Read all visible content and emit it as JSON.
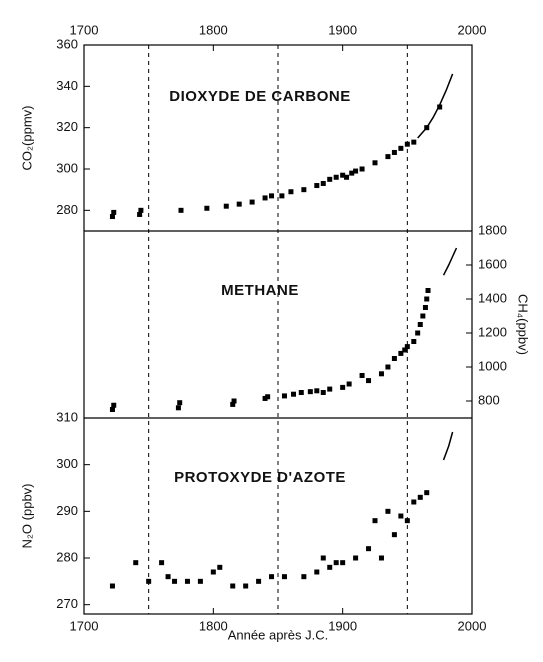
{
  "chart_data": [
    {
      "type": "scatter",
      "title": "DIOXYDE DE CARBONE",
      "y_label": "CO₂(ppmv)",
      "y_axis_side": "left",
      "xlim": [
        1700,
        2000
      ],
      "xticks": [
        1700,
        1800,
        1900,
        2000
      ],
      "x_axis_side": "top",
      "ylim": [
        270,
        360
      ],
      "yticks": [
        280,
        300,
        320,
        340,
        360
      ],
      "vlines": [
        1750,
        1850,
        1950
      ],
      "series": [
        {
          "style": "points",
          "color": "#000000",
          "x": [
            1722,
            1723,
            1743,
            1744,
            1775,
            1795,
            1810,
            1820,
            1830,
            1840,
            1845,
            1853,
            1860,
            1870,
            1880,
            1885,
            1890,
            1895,
            1900,
            1903,
            1907,
            1910,
            1915,
            1925,
            1935,
            1940,
            1945,
            1950,
            1955,
            1965,
            1975
          ],
          "values": [
            277,
            279,
            278,
            280,
            280,
            281,
            282,
            283,
            284,
            286,
            287,
            287,
            289,
            290,
            292,
            293,
            295,
            296,
            297,
            296,
            298,
            299,
            300,
            303,
            306,
            308,
            310,
            312,
            313,
            320,
            330
          ]
        },
        {
          "style": "line",
          "color": "#000000",
          "x": [
            1958,
            1965,
            1970,
            1975,
            1980,
            1985
          ],
          "values": [
            315,
            320,
            325,
            331,
            338,
            346
          ]
        }
      ]
    },
    {
      "type": "scatter",
      "title": "METHANE",
      "y_label": "CH₄(ppbv)",
      "y_axis_side": "right",
      "xlim": [
        1700,
        2000
      ],
      "ylim": [
        700,
        1800
      ],
      "yticks": [
        800,
        1000,
        1200,
        1400,
        1600,
        1800
      ],
      "series": [
        {
          "style": "points",
          "color": "#000000",
          "x": [
            1722,
            1723,
            1773,
            1774,
            1815,
            1816,
            1840,
            1842,
            1855,
            1862,
            1868,
            1875,
            1880,
            1885,
            1890,
            1900,
            1905,
            1915,
            1920,
            1930,
            1935,
            1940,
            1945,
            1948,
            1950,
            1955,
            1958,
            1960,
            1962,
            1964,
            1965,
            1966
          ],
          "values": [
            750,
            775,
            760,
            790,
            780,
            800,
            815,
            825,
            830,
            840,
            850,
            855,
            860,
            850,
            870,
            880,
            900,
            950,
            920,
            960,
            1000,
            1050,
            1080,
            1100,
            1120,
            1150,
            1200,
            1250,
            1300,
            1350,
            1400,
            1450
          ]
        },
        {
          "style": "line",
          "color": "#000000",
          "x": [
            1978,
            1982,
            1985,
            1988
          ],
          "values": [
            1540,
            1600,
            1650,
            1700
          ]
        }
      ]
    },
    {
      "type": "scatter",
      "title": "PROTOXYDE D'AZOTE",
      "y_label": "N₂O (ppbv)",
      "y_axis_side": "left",
      "xlim": [
        1700,
        2000
      ],
      "xticks": [
        1700,
        1800,
        1900,
        2000
      ],
      "x_axis_side": "bottom",
      "x_label": "Année après J.C.",
      "ylim": [
        268,
        310
      ],
      "yticks": [
        270,
        280,
        290,
        300,
        310
      ],
      "series": [
        {
          "style": "points",
          "color": "#000000",
          "x": [
            1722,
            1740,
            1750,
            1760,
            1765,
            1770,
            1780,
            1790,
            1800,
            1805,
            1815,
            1825,
            1835,
            1845,
            1855,
            1870,
            1880,
            1885,
            1890,
            1895,
            1900,
            1910,
            1920,
            1925,
            1930,
            1935,
            1940,
            1945,
            1950,
            1955,
            1960,
            1965
          ],
          "values": [
            274,
            279,
            275,
            279,
            276,
            275,
            275,
            275,
            277,
            278,
            274,
            274,
            275,
            276,
            276,
            276,
            277,
            280,
            278,
            279,
            279,
            280,
            282,
            288,
            280,
            290,
            285,
            289,
            288,
            292,
            293,
            294
          ]
        },
        {
          "style": "line",
          "color": "#000000",
          "x": [
            1978,
            1982,
            1985
          ],
          "values": [
            301,
            304,
            307
          ]
        }
      ]
    }
  ]
}
